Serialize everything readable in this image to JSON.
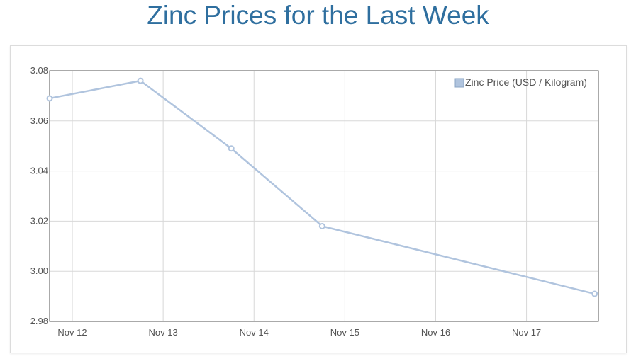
{
  "page": {
    "title": "Zinc Prices for the Last Week"
  },
  "colors": {
    "title": "#2f6f9f",
    "series": "#b0c4de",
    "grid": "#d8d8d8",
    "axis_text": "#545454"
  },
  "chart_data": {
    "type": "line",
    "title": "",
    "xlabel": "",
    "ylabel": "",
    "x_unit": "day",
    "x_ticks": [
      "Nov 12",
      "Nov 13",
      "Nov 14",
      "Nov 15",
      "Nov 16",
      "Nov 17"
    ],
    "x_range": [
      "Nov 11 18:00",
      "Nov 17 19:00"
    ],
    "y_ticks": [
      "3.08",
      "3.06",
      "3.04",
      "3.02",
      "3.00",
      "2.98"
    ],
    "ylim": [
      2.98,
      3.08
    ],
    "grid": true,
    "legend_position": "top-right",
    "series": [
      {
        "name": "Zinc Price (USD / Kilogram)",
        "color": "#b0c4de",
        "points": [
          {
            "x": "Nov 11 18:00",
            "y": 3.069
          },
          {
            "x": "Nov 12 18:00",
            "y": 3.076
          },
          {
            "x": "Nov 13 18:00",
            "y": 3.049
          },
          {
            "x": "Nov 14 18:00",
            "y": 3.018
          },
          {
            "x": "Nov 17 18:00",
            "y": 2.991
          }
        ]
      }
    ]
  }
}
